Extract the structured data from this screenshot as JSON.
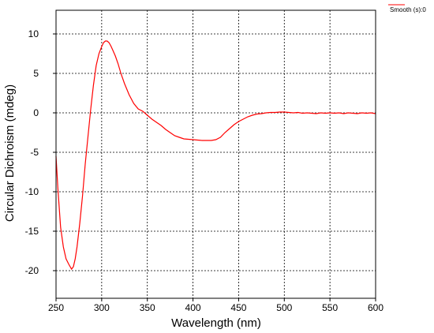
{
  "chart_data": {
    "type": "line",
    "title": "",
    "xlabel": "Wavelength (nm)",
    "ylabel": "Circular Dichroism (mdeg)",
    "xlim": [
      250,
      600
    ],
    "ylim": [
      -23.5,
      13
    ],
    "x_ticks": [
      250,
      300,
      350,
      400,
      450,
      500,
      550,
      600
    ],
    "y_ticks": [
      10,
      5,
      0,
      -5,
      -10,
      -15,
      -20
    ],
    "grid": true,
    "grid_style": "dashed",
    "legend_position": "top-right",
    "series": [
      {
        "name": "Smooth (s):0",
        "color": "#ff0000",
        "x": [
          250,
          252,
          255,
          258,
          261,
          264,
          267,
          269,
          271,
          273,
          276,
          279,
          282,
          285,
          288,
          291,
          294,
          297,
          300,
          302,
          304,
          306,
          308,
          310,
          312,
          315,
          318,
          321,
          325,
          330,
          335,
          340,
          345,
          350,
          355,
          360,
          365,
          370,
          375,
          380,
          385,
          390,
          395,
          400,
          405,
          410,
          415,
          420,
          425,
          430,
          435,
          440,
          445,
          450,
          455,
          460,
          465,
          470,
          475,
          480,
          485,
          490,
          495,
          500,
          505,
          510,
          515,
          520,
          525,
          530,
          535,
          540,
          545,
          550,
          555,
          560,
          565,
          570,
          575,
          580,
          585,
          590,
          595,
          600
        ],
        "values": [
          -5.5,
          -9.5,
          -14.5,
          -17,
          -18.5,
          -19.2,
          -19.8,
          -19.5,
          -18.5,
          -17,
          -14,
          -10.5,
          -6.5,
          -3,
          0.5,
          3.5,
          6,
          7.5,
          8.4,
          8.9,
          9.1,
          9.1,
          8.9,
          8.5,
          8,
          7.2,
          6.2,
          5,
          3.7,
          2.3,
          1.2,
          0.5,
          0.2,
          -0.3,
          -0.8,
          -1.2,
          -1.6,
          -2.1,
          -2.5,
          -2.9,
          -3.1,
          -3.3,
          -3.35,
          -3.4,
          -3.45,
          -3.5,
          -3.5,
          -3.5,
          -3.4,
          -3.1,
          -2.5,
          -2,
          -1.5,
          -1.1,
          -0.8,
          -0.5,
          -0.3,
          -0.15,
          -0.1,
          0,
          0.05,
          0.05,
          0.1,
          0.1,
          0.05,
          0,
          0.05,
          -0.05,
          0,
          -0.05,
          -0.1,
          0,
          -0.05,
          0,
          -0.05,
          0,
          -0.1,
          0,
          -0.05,
          -0.1,
          0,
          -0.05,
          0,
          -0.1
        ]
      }
    ]
  }
}
